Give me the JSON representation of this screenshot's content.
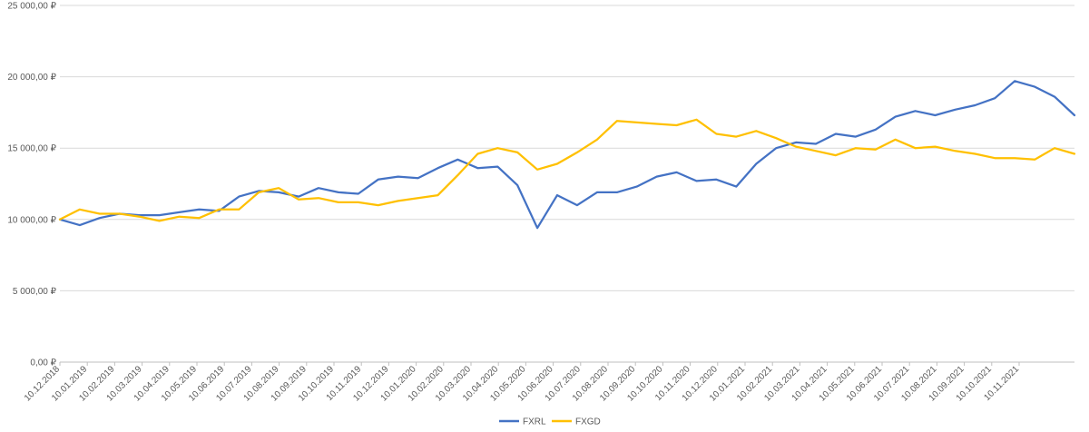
{
  "chart_data": {
    "type": "line",
    "title": "",
    "xlabel": "",
    "ylabel": "",
    "ylim": [
      0,
      25000
    ],
    "grid": true,
    "legend_position": "bottom",
    "y_ticks": [
      "0,00 ₽",
      "5 000,00 ₽",
      "10 000,00 ₽",
      "15 000,00 ₽",
      "20 000,00 ₽",
      "25 000,00 ₽"
    ],
    "y_tick_values": [
      0,
      5000,
      10000,
      15000,
      20000,
      25000
    ],
    "x_ticks": [
      "10.12.2018",
      "10.01.2019",
      "10.02.2019",
      "10.03.2019",
      "10.04.2019",
      "10.05.2019",
      "10.06.2019",
      "10.07.2019",
      "10.08.2019",
      "10.09.2019",
      "10.10.2019",
      "10.11.2019",
      "10.12.2019",
      "10.01.2020",
      "10.02.2020",
      "10.03.2020",
      "10.04.2020",
      "10.05.2020",
      "10.06.2020",
      "10.07.2020",
      "10.08.2020",
      "10.09.2020",
      "10.10.2020",
      "10.11.2020",
      "10.12.2020",
      "10.01.2021",
      "10.02.2021",
      "10.03.2021",
      "10.04.2021",
      "10.05.2021",
      "10.06.2021",
      "10.07.2021",
      "10.08.2021",
      "10.09.2021",
      "10.10.2021",
      "10.11.2021"
    ],
    "series": [
      {
        "name": "FXRL",
        "color": "#4472C4",
        "values": [
          10000,
          9600,
          10100,
          10400,
          10300,
          10300,
          10500,
          10700,
          10600,
          11600,
          12000,
          11900,
          11600,
          12200,
          11900,
          11800,
          12800,
          13000,
          12900,
          13600,
          14200,
          13600,
          13700,
          12400,
          9400,
          11700,
          11000,
          11900,
          11900,
          12300,
          13000,
          13300,
          12700,
          12800,
          12300,
          13900,
          15000,
          15400,
          15300,
          16000,
          15800,
          16300,
          17200,
          17600,
          17300,
          17700,
          18000,
          18500,
          19700,
          19300,
          18600,
          17300
        ]
      },
      {
        "name": "FXGD",
        "color": "#FFC000",
        "values": [
          10000,
          10700,
          10400,
          10400,
          10200,
          9900,
          10200,
          10100,
          10700,
          10700,
          11900,
          12200,
          11400,
          11500,
          11200,
          11200,
          11000,
          11300,
          11500,
          11700,
          13100,
          14600,
          15000,
          14700,
          13500,
          13900,
          14700,
          15600,
          16900,
          16800,
          16700,
          16600,
          17000,
          16000,
          15800,
          16200,
          15700,
          15100,
          14800,
          14500,
          15000,
          14900,
          15600,
          15000,
          15100,
          14800,
          14600,
          14300,
          14300,
          14200,
          15000,
          14600
        ]
      }
    ]
  }
}
